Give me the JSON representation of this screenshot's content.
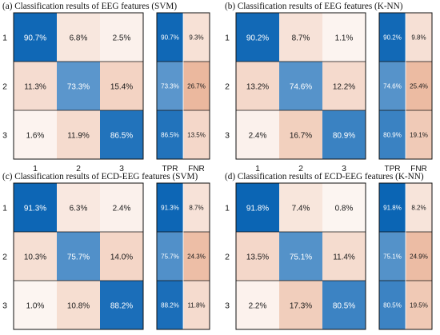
{
  "chart_data": [
    {
      "type": "heatmap",
      "title": "(a) Classification results of EEG features (SVM)",
      "row_labels": [
        "1",
        "2",
        "3"
      ],
      "col_labels": [
        "1",
        "2",
        "3"
      ],
      "matrix": [
        [
          90.7,
          6.8,
          2.5
        ],
        [
          11.3,
          73.3,
          15.4
        ],
        [
          1.6,
          11.9,
          86.5
        ]
      ],
      "rate_labels": [
        "TPR",
        "FNR"
      ],
      "tpr": [
        90.7,
        73.3,
        86.5
      ],
      "fnr": [
        9.3,
        26.7,
        13.5
      ]
    },
    {
      "type": "heatmap",
      "title": "(b) Classification results of EEG features (K-NN)",
      "row_labels": [
        "1",
        "2",
        "3"
      ],
      "col_labels": [
        "1",
        "2",
        "3"
      ],
      "matrix": [
        [
          90.2,
          8.7,
          1.1
        ],
        [
          13.2,
          74.6,
          12.2
        ],
        [
          2.4,
          16.7,
          80.9
        ]
      ],
      "rate_labels": [
        "TPR",
        "FNR"
      ],
      "tpr": [
        90.2,
        74.6,
        80.9
      ],
      "fnr": [
        9.8,
        25.4,
        19.1
      ]
    },
    {
      "type": "heatmap",
      "title": "(c) Classification results of ECD-EEG features (SVM)",
      "row_labels": [
        "1",
        "2",
        "3"
      ],
      "col_labels": [
        "1",
        "2",
        "3"
      ],
      "matrix": [
        [
          91.3,
          6.3,
          2.4
        ],
        [
          10.3,
          75.7,
          14.0
        ],
        [
          1.0,
          10.8,
          88.2
        ]
      ],
      "rate_labels": [
        "TPR",
        "FNR"
      ],
      "tpr": [
        91.3,
        75.7,
        88.2
      ],
      "fnr": [
        8.7,
        24.3,
        11.8
      ]
    },
    {
      "type": "heatmap",
      "title": "(d) Classification results of ECD-EEG features (K-NN)",
      "row_labels": [
        "1",
        "2",
        "3"
      ],
      "col_labels": [
        "1",
        "2",
        "3"
      ],
      "matrix": [
        [
          91.8,
          7.4,
          0.8
        ],
        [
          13.5,
          75.1,
          11.4
        ],
        [
          2.2,
          17.3,
          80.5
        ]
      ],
      "rate_labels": [
        "TPR",
        "FNR"
      ],
      "tpr": [
        91.8,
        75.1,
        80.5
      ],
      "fnr": [
        8.2,
        24.9,
        19.5
      ]
    }
  ],
  "colors": {
    "blue_high": "#0a64b4",
    "blue_low": "#dfe8f2",
    "cell_white": "#fdf7f4",
    "orange_high": "#eab59a",
    "border": "#111111"
  }
}
